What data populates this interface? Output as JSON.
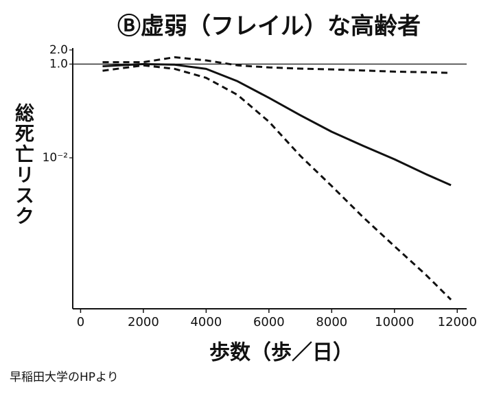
{
  "chart_data": {
    "type": "line",
    "title": "Ⓑ虚弱（フレイル）な高齢者",
    "x_label": "歩数（歩／日）",
    "y_label": "総死亡リスク",
    "source": "早稲田大学のHPより",
    "x": [
      700,
      2000,
      3000,
      4000,
      5000,
      6000,
      7000,
      8000,
      9000,
      10000,
      11000,
      11800
    ],
    "series": [
      {
        "color": "#111111",
        "style": "dashed",
        "values": [
          1.1,
          1.1,
          1.4,
          1.2,
          0.94,
          0.85,
          0.8,
          0.77,
          0.73,
          0.69,
          0.67,
          0.65
        ]
      },
      {
        "color": "#111111",
        "style": "solid",
        "values": [
          0.9,
          1.0,
          0.97,
          0.79,
          0.43,
          0.19,
          0.081,
          0.036,
          0.018,
          0.0093,
          0.0045,
          0.0026
        ]
      },
      {
        "color": "#111111",
        "style": "dashed",
        "values": [
          0.72,
          0.94,
          0.79,
          0.51,
          0.22,
          0.059,
          0.011,
          0.0025,
          0.00054,
          0.00013,
          3.2e-05,
          9.4e-06
        ]
      }
    ],
    "xlim": [
      -250,
      12300
    ],
    "xticks": [
      0,
      2000,
      4000,
      6000,
      8000,
      10000,
      12000
    ],
    "ylim": [
      6e-06,
      2.2
    ],
    "yticks": [
      {
        "value": 2,
        "label": "2.0"
      },
      {
        "value": 1,
        "label": "1.0"
      },
      {
        "value": 0.01,
        "label": "10⁻²"
      }
    ],
    "y_scale": "log",
    "reference_line": 1
  }
}
